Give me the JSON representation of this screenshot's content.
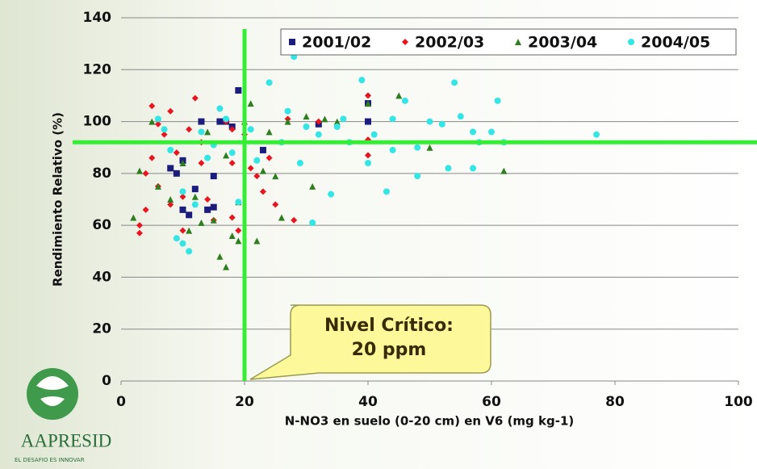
{
  "chart_data": {
    "type": "scatter",
    "x_label": "N-NO3 en suelo (0-20 cm) en V6 (mg kg-1)",
    "y_label": "Rendimiento Relativo (%)",
    "xlim": [
      0,
      100
    ],
    "xticks": [
      0,
      20,
      40,
      60,
      80,
      100
    ],
    "ylim": [
      0,
      140
    ],
    "yticks": [
      0,
      20,
      40,
      60,
      80,
      100,
      120,
      140
    ],
    "grid": true,
    "legend": "top-right",
    "critical_x": 20,
    "critical_y": 92,
    "critical_color": "#33ee33",
    "annotation": [
      "Nivel Crítico:",
      "20 ppm"
    ],
    "series": [
      {
        "name": "2001/02",
        "color": "#1c1c7c",
        "marker": "square",
        "x": [
          8,
          9,
          10,
          11,
          12,
          13,
          14,
          15,
          15,
          16,
          17,
          18,
          19,
          23,
          32,
          40,
          40,
          10
        ],
        "y": [
          82,
          80,
          66,
          64,
          74,
          100,
          66,
          67,
          79,
          100,
          100,
          98,
          112,
          89,
          99,
          107,
          100,
          85
        ]
      },
      {
        "name": "2002/03",
        "color": "#e8141e",
        "marker": "diamond",
        "x": [
          3,
          3,
          4,
          4,
          5,
          5,
          6,
          6,
          7,
          8,
          9,
          10,
          10,
          11,
          12,
          13,
          14,
          15,
          16,
          17,
          18,
          18,
          19,
          20,
          21,
          22,
          23,
          24,
          25,
          27,
          28,
          32,
          40,
          40,
          40,
          18,
          8,
          13
        ],
        "y": [
          57,
          60,
          66,
          80,
          86,
          106,
          99,
          75,
          95,
          104,
          88,
          71,
          58,
          97,
          109,
          92,
          70,
          62,
          105,
          100,
          63,
          97,
          58,
          95,
          82,
          79,
          73,
          86,
          68,
          101,
          62,
          100,
          110,
          93,
          87,
          84,
          68,
          84
        ]
      },
      {
        "name": "2003/04",
        "color": "#2e7d1e",
        "marker": "triangle",
        "x": [
          2,
          3,
          5,
          6,
          8,
          10,
          11,
          12,
          14,
          15,
          16,
          17,
          17,
          18,
          19,
          20,
          21,
          22,
          23,
          24,
          25,
          26,
          27,
          30,
          31,
          33,
          35,
          40,
          45,
          50,
          62,
          19,
          13
        ],
        "y": [
          63,
          81,
          100,
          75,
          70,
          84,
          58,
          71,
          96,
          62,
          48,
          44,
          87,
          56,
          54,
          100,
          107,
          54,
          81,
          96,
          79,
          63,
          100,
          102,
          75,
          101,
          100,
          107,
          110,
          90,
          81,
          69,
          61
        ]
      },
      {
        "name": "2004/05",
        "color": "#33e5e5",
        "marker": "circle",
        "x": [
          6,
          7,
          8,
          9,
          10,
          10,
          11,
          12,
          13,
          14,
          15,
          16,
          17,
          18,
          19,
          21,
          22,
          24,
          26,
          28,
          29,
          30,
          32,
          34,
          35,
          37,
          39,
          40,
          41,
          43,
          44,
          46,
          48,
          50,
          52,
          54,
          55,
          57,
          58,
          60,
          61,
          62,
          77,
          31,
          27,
          36,
          44,
          53,
          57,
          48
        ],
        "y": [
          101,
          97,
          89,
          55,
          53,
          73,
          50,
          68,
          96,
          86,
          91,
          105,
          101,
          88,
          69,
          97,
          85,
          115,
          92,
          125,
          84,
          98,
          95,
          72,
          98,
          92,
          116,
          84,
          95,
          73,
          101,
          108,
          79,
          100,
          99,
          115,
          102,
          96,
          92,
          96,
          108,
          92,
          95,
          61,
          104,
          101,
          89,
          82,
          82,
          90
        ]
      }
    ],
    "logo": {
      "name": "AAPRESID",
      "tagline": "EL DESAFIO ES INNOVAR"
    }
  }
}
